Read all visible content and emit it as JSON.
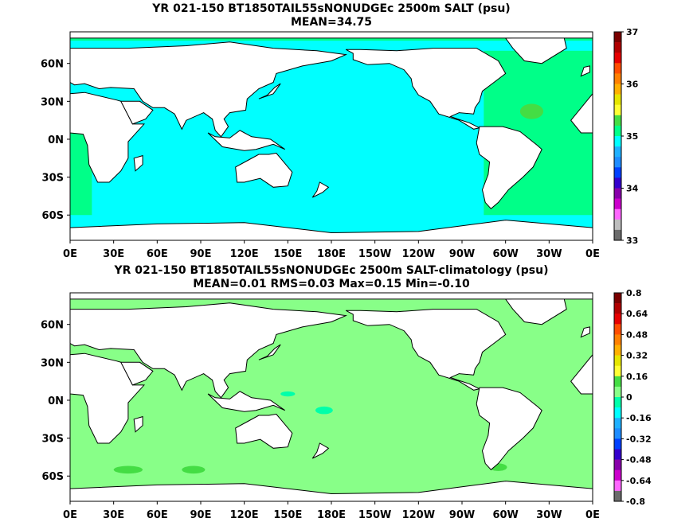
{
  "chart_data": [
    {
      "type": "heatmap",
      "title": "YR 021-150 BT1850TAIL55sNONUDGEc 2500m SALT (psu)",
      "subtitle": "MEAN=34.75",
      "xticks": [
        "0E",
        "30E",
        "60E",
        "90E",
        "120E",
        "150E",
        "180E",
        "150W",
        "120W",
        "90W",
        "60W",
        "30W",
        "0E"
      ],
      "yticks": [
        "60N",
        "30N",
        "0N",
        "30S",
        "60S"
      ],
      "xlim": [
        0,
        360
      ],
      "ylim": [
        -80,
        85
      ],
      "colorbar": {
        "range": [
          33,
          37
        ],
        "labels": [
          "37",
          "36",
          "35",
          "34",
          "33"
        ],
        "colors": [
          "#7a0000",
          "#b00000",
          "#e60000",
          "#ff4d00",
          "#ff8000",
          "#ffb000",
          "#e6e600",
          "#ffff33",
          "#44dd44",
          "#00ff88",
          "#00ffff",
          "#1fb0ff",
          "#1e8cff",
          "#0040ff",
          "#3300cc",
          "#8800aa",
          "#cc00cc",
          "#ff66ff",
          "#bdbdbd",
          "#6b6b6b"
        ]
      },
      "fields": {
        "pacific_indian": "#00ffff",
        "atlantic": "#00ff88",
        "subtropical_high": "#44dd44"
      }
    },
    {
      "type": "heatmap",
      "title": "YR 021-150 BT1850TAIL55sNONUDGEc 2500m SALT-climatology (psu)",
      "subtitle": "MEAN=0.01   RMS=0.03   Max=0.15   Min=-0.10",
      "xticks": [
        "0E",
        "30E",
        "60E",
        "90E",
        "120E",
        "150E",
        "180E",
        "150W",
        "120W",
        "90W",
        "60W",
        "30W",
        "0E"
      ],
      "yticks": [
        "60N",
        "30N",
        "0N",
        "30S",
        "60S"
      ],
      "xlim": [
        0,
        360
      ],
      "ylim": [
        -80,
        85
      ],
      "colorbar": {
        "range": [
          -0.8,
          0.8
        ],
        "labels": [
          "0.8",
          "0.64",
          "0.48",
          "0.32",
          "0.16",
          "0",
          "-0.16",
          "-0.32",
          "-0.48",
          "-0.64",
          "-0.8"
        ],
        "colors": [
          "#7a0000",
          "#b00000",
          "#e60000",
          "#ff4d00",
          "#ff8000",
          "#ffb000",
          "#e6e600",
          "#ffff33",
          "#44dd44",
          "#88ff88",
          "#00ffaa",
          "#00ffff",
          "#1fb0ff",
          "#1e8cff",
          "#0040ff",
          "#3300cc",
          "#8800aa",
          "#cc00cc",
          "#ff66ff",
          "#6b6b6b"
        ]
      },
      "fields": {
        "ocean": "#88ff88",
        "positive_patch": "#44dd44",
        "near_zero": "#00ffaa"
      }
    }
  ]
}
